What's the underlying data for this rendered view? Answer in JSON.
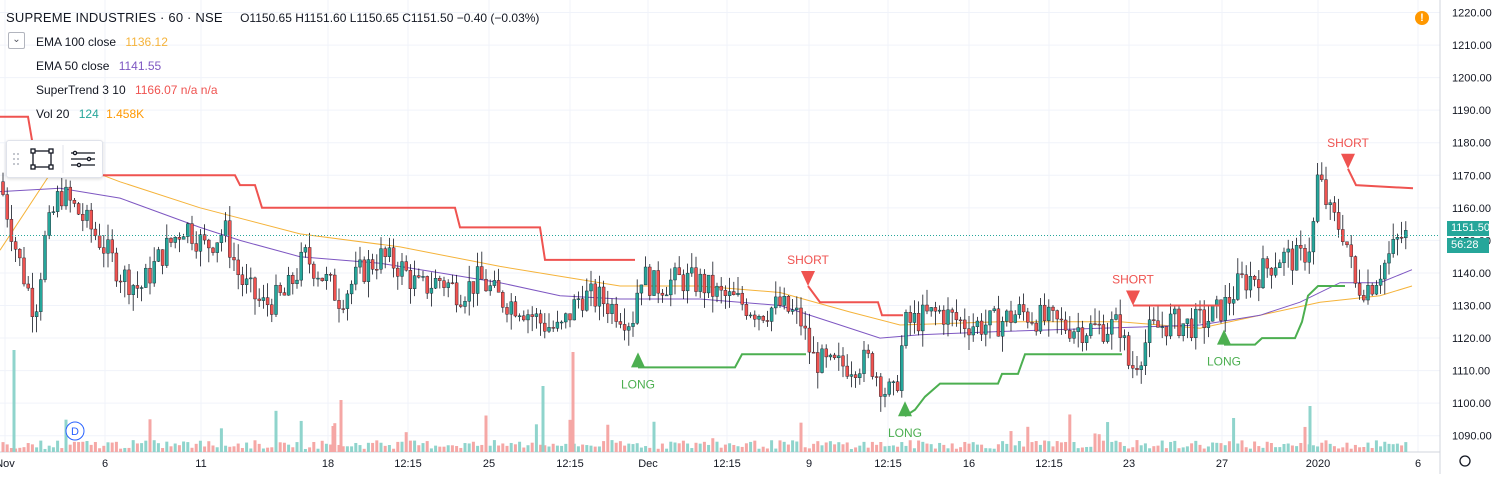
{
  "header": {
    "title": "SUPREME INDUSTRIES · 60 · NSE",
    "ohlc": "O1150.65  H1151.60  L1150.65  C1151.50  −0.40 (−0.03%)"
  },
  "indicators": [
    {
      "name": "EMA 100 close",
      "value": "1136.12",
      "color": "#f5b33a"
    },
    {
      "name": "EMA 50 close",
      "value": "1141.55",
      "color": "#7e57c2"
    },
    {
      "name": "SuperTrend 3 10",
      "value": "1166.07  n/a  n/a",
      "color": "#ef5350"
    },
    {
      "name": "Vol 20",
      "value": "124",
      "value2": "1.458K",
      "color": "#26a69a",
      "color2": "#ff9800"
    }
  ],
  "last_price": {
    "value": "1151.50",
    "countdown": "56:28"
  },
  "warning_icon": "!",
  "event_marker": "D",
  "chart_data": {
    "type": "candlestick",
    "ylim": [
      1085,
      1222
    ],
    "y_ticks": [
      1090,
      1100,
      1110,
      1120,
      1130,
      1140,
      1150,
      1160,
      1170,
      1180,
      1190,
      1200,
      1210,
      1220
    ],
    "x_ticks": [
      "Nov",
      "6",
      "11",
      "18",
      "12:15",
      "25",
      "12:15",
      "Dec",
      "12:15",
      "9",
      "12:15",
      "16",
      "12:15",
      "23",
      "27",
      "2020",
      "6"
    ],
    "last_close": 1151.5,
    "colors": {
      "up": "#26a69a",
      "down": "#ef5350",
      "volume_up": "#8fd4cc",
      "volume_down": "#f5a7a5"
    },
    "anchors": [
      [
        0,
        1168
      ],
      [
        18,
        1145
      ],
      [
        35,
        1128
      ],
      [
        45,
        1150
      ],
      [
        60,
        1165
      ],
      [
        80,
        1158
      ],
      [
        100,
        1150
      ],
      [
        120,
        1140
      ],
      [
        140,
        1135
      ],
      [
        160,
        1145
      ],
      [
        185,
        1155
      ],
      [
        205,
        1148
      ],
      [
        225,
        1153
      ],
      [
        240,
        1138
      ],
      [
        262,
        1130
      ],
      [
        285,
        1133
      ],
      [
        305,
        1145
      ],
      [
        320,
        1140
      ],
      [
        340,
        1132
      ],
      [
        360,
        1140
      ],
      [
        380,
        1145
      ],
      [
        400,
        1142
      ],
      [
        420,
        1135
      ],
      [
        440,
        1138
      ],
      [
        460,
        1134
      ],
      [
        480,
        1138
      ],
      [
        500,
        1132
      ],
      [
        520,
        1130
      ],
      [
        540,
        1125
      ],
      [
        560,
        1122
      ],
      [
        580,
        1133
      ],
      [
        600,
        1132
      ],
      [
        620,
        1128
      ],
      [
        632,
        1125
      ],
      [
        640,
        1140
      ],
      [
        655,
        1136
      ],
      [
        680,
        1138
      ],
      [
        700,
        1137
      ],
      [
        720,
        1133
      ],
      [
        740,
        1131
      ],
      [
        760,
        1128
      ],
      [
        780,
        1130
      ],
      [
        800,
        1126
      ],
      [
        812,
        1114
      ],
      [
        830,
        1111
      ],
      [
        850,
        1112
      ],
      [
        870,
        1113
      ],
      [
        885,
        1104
      ],
      [
        895,
        1102
      ],
      [
        905,
        1124
      ],
      [
        920,
        1126
      ],
      [
        940,
        1128
      ],
      [
        960,
        1125
      ],
      [
        980,
        1124
      ],
      [
        1000,
        1125
      ],
      [
        1020,
        1128
      ],
      [
        1040,
        1126
      ],
      [
        1060,
        1124
      ],
      [
        1080,
        1123
      ],
      [
        1100,
        1123
      ],
      [
        1120,
        1124
      ],
      [
        1130,
        1110
      ],
      [
        1140,
        1115
      ],
      [
        1150,
        1122
      ],
      [
        1170,
        1125
      ],
      [
        1190,
        1124
      ],
      [
        1210,
        1126
      ],
      [
        1225,
        1130
      ],
      [
        1240,
        1137
      ],
      [
        1260,
        1140
      ],
      [
        1280,
        1145
      ],
      [
        1300,
        1144
      ],
      [
        1312,
        1150
      ],
      [
        1318,
        1170
      ],
      [
        1330,
        1158
      ],
      [
        1345,
        1152
      ],
      [
        1355,
        1136
      ],
      [
        1370,
        1136
      ],
      [
        1385,
        1143
      ],
      [
        1400,
        1151
      ],
      [
        1410,
        1151.5
      ]
    ],
    "ema100": [
      [
        0,
        1147
      ],
      [
        60,
        1175
      ],
      [
        120,
        1168
      ],
      [
        200,
        1160
      ],
      [
        300,
        1152
      ],
      [
        400,
        1148
      ],
      [
        500,
        1142
      ],
      [
        560,
        1139
      ],
      [
        620,
        1136
      ],
      [
        700,
        1136
      ],
      [
        780,
        1134
      ],
      [
        850,
        1128
      ],
      [
        900,
        1124
      ],
      [
        1000,
        1125
      ],
      [
        1120,
        1125
      ],
      [
        1200,
        1123
      ],
      [
        1260,
        1127
      ],
      [
        1320,
        1131
      ],
      [
        1380,
        1133
      ],
      [
        1412,
        1136
      ]
    ],
    "ema50": [
      [
        0,
        1165
      ],
      [
        60,
        1166
      ],
      [
        120,
        1163
      ],
      [
        200,
        1154
      ],
      [
        240,
        1150
      ],
      [
        300,
        1145
      ],
      [
        380,
        1143
      ],
      [
        440,
        1140
      ],
      [
        500,
        1137
      ],
      [
        560,
        1133
      ],
      [
        620,
        1132
      ],
      [
        700,
        1132
      ],
      [
        780,
        1130
      ],
      [
        840,
        1124
      ],
      [
        880,
        1120
      ],
      [
        920,
        1121
      ],
      [
        1000,
        1122
      ],
      [
        1100,
        1123
      ],
      [
        1200,
        1124
      ],
      [
        1260,
        1127
      ],
      [
        1300,
        1131
      ],
      [
        1340,
        1137
      ],
      [
        1380,
        1137
      ],
      [
        1412,
        1141
      ]
    ],
    "supertrend": {
      "down": [
        [
          [
            0,
            1188
          ],
          [
            28,
            1188
          ],
          [
            33,
            1179
          ],
          [
            38,
            1178
          ],
          [
            40,
            1170
          ],
          [
            235,
            1170
          ],
          [
            240,
            1167
          ],
          [
            255,
            1167
          ],
          [
            262,
            1160
          ],
          [
            455,
            1160
          ],
          [
            460,
            1154
          ],
          [
            540,
            1154
          ],
          [
            545,
            1144
          ],
          [
            635,
            1144
          ]
        ],
        [
          [
            808,
            1136
          ],
          [
            820,
            1131
          ],
          [
            878,
            1131
          ],
          [
            882,
            1127
          ],
          [
            903,
            1127
          ]
        ],
        [
          [
            1133,
            1130
          ],
          [
            1222,
            1130
          ]
        ],
        [
          [
            1348,
            1172
          ],
          [
            1356,
            1167
          ],
          [
            1413,
            1166
          ]
        ]
      ],
      "up": [
        [
          [
            638,
            1111
          ],
          [
            735,
            1111
          ],
          [
            742,
            1115
          ],
          [
            806,
            1115
          ]
        ],
        [
          [
            905,
            1096
          ],
          [
            915,
            1098
          ],
          [
            925,
            1102
          ],
          [
            940,
            1106
          ],
          [
            998,
            1106
          ],
          [
            1002,
            1109
          ],
          [
            1018,
            1109
          ],
          [
            1025,
            1115
          ],
          [
            1122,
            1115
          ]
        ],
        [
          [
            1224,
            1118
          ],
          [
            1255,
            1118
          ],
          [
            1262,
            1120
          ],
          [
            1295,
            1120
          ],
          [
            1302,
            1125
          ],
          [
            1308,
            1133
          ],
          [
            1318,
            1136
          ],
          [
            1345,
            1136
          ]
        ]
      ],
      "signals": [
        {
          "label": "LONG",
          "x": 638,
          "dir": "up",
          "y": 1111
        },
        {
          "label": "SHORT",
          "x": 808,
          "dir": "down",
          "y": 1136
        },
        {
          "label": "LONG",
          "x": 905,
          "dir": "up",
          "y": 1096
        },
        {
          "label": "SHORT",
          "x": 1133,
          "dir": "down",
          "y": 1130
        },
        {
          "label": "LONG",
          "x": 1224,
          "dir": "up",
          "y": 1118
        },
        {
          "label": "SHORT",
          "x": 1348,
          "dir": "down",
          "y": 1172
        }
      ]
    }
  }
}
